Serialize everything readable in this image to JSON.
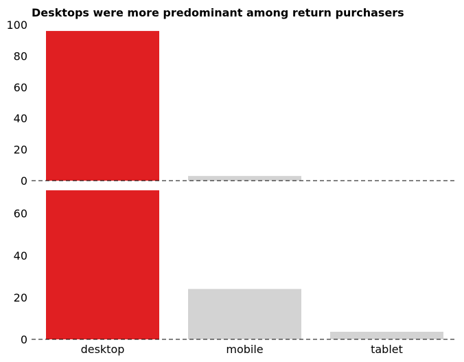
{
  "chart_data": [
    {
      "type": "bar",
      "title": "Desktops were more predominant among return purchasers",
      "xlabel": "",
      "ylabel": "",
      "categories": [
        "desktop",
        "mobile",
        "tablet"
      ],
      "values": [
        96,
        3,
        0
      ],
      "ylim": [
        0,
        100
      ],
      "yticks": [
        0,
        20,
        40,
        60,
        80,
        100
      ],
      "grid": false,
      "baseline": "dashed",
      "colors": [
        "#e01f22",
        "#d3d3d3",
        "#d3d3d3"
      ]
    },
    {
      "type": "bar",
      "title": "",
      "xlabel": "",
      "ylabel": "",
      "categories": [
        "desktop",
        "mobile",
        "tablet"
      ],
      "values": [
        71,
        24,
        3.6
      ],
      "ylim": [
        0,
        72
      ],
      "yticks": [
        0,
        20,
        40,
        60
      ],
      "grid": false,
      "baseline": "dashed",
      "colors": [
        "#e01f22",
        "#d3d3d3",
        "#d3d3d3"
      ]
    }
  ]
}
